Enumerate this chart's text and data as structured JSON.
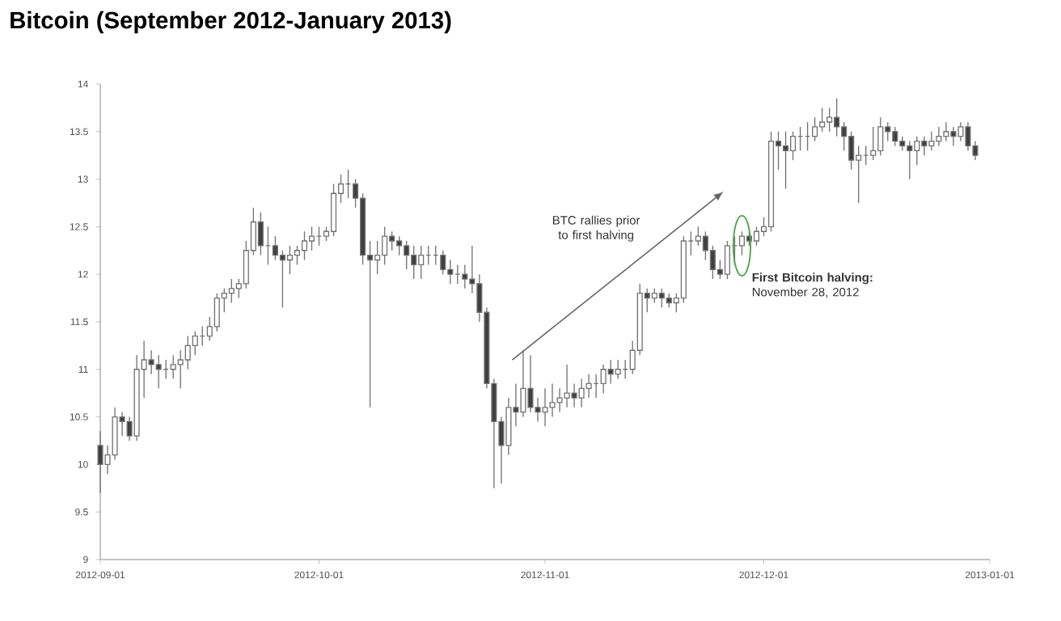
{
  "chart_data": {
    "type": "candlestick",
    "title": "Bitcoin (September 2012-January 2013)",
    "annotations": [
      "BTC rallies prior to first halving",
      {
        "text": "**First Bitcoin halving:** November 28, 2012",
        "x": "2012-11-28",
        "y": 12.3
      }
    ],
    "x": [
      "2012-09-01",
      "2012-09-02",
      "2012-09-03",
      "2012-09-04",
      "2012-09-05",
      "2012-09-06",
      "2012-09-07",
      "2012-09-08",
      "2012-09-09",
      "2012-09-10",
      "2012-09-11",
      "2012-09-12",
      "2012-09-13",
      "2012-09-14",
      "2012-09-15",
      "2012-09-16",
      "2012-09-17",
      "2012-09-18",
      "2012-09-19",
      "2012-09-20",
      "2012-09-21",
      "2012-09-22",
      "2012-09-23",
      "2012-09-24",
      "2012-09-25",
      "2012-09-26",
      "2012-09-27",
      "2012-09-28",
      "2012-09-29",
      "2012-09-30",
      "2012-10-01",
      "2012-10-02",
      "2012-10-03",
      "2012-10-04",
      "2012-10-05",
      "2012-10-06",
      "2012-10-07",
      "2012-10-08",
      "2012-10-09",
      "2012-10-10",
      "2012-10-11",
      "2012-10-12",
      "2012-10-13",
      "2012-10-14",
      "2012-10-15",
      "2012-10-16",
      "2012-10-17",
      "2012-10-18",
      "2012-10-19",
      "2012-10-20",
      "2012-10-21",
      "2012-10-22",
      "2012-10-23",
      "2012-10-24",
      "2012-10-25",
      "2012-10-26",
      "2012-10-27",
      "2012-10-28",
      "2012-10-29",
      "2012-10-30",
      "2012-10-31",
      "2012-11-01",
      "2012-11-02",
      "2012-11-03",
      "2012-11-04",
      "2012-11-05",
      "2012-11-06",
      "2012-11-07",
      "2012-11-08",
      "2012-11-09",
      "2012-11-10",
      "2012-11-11",
      "2012-11-12",
      "2012-11-13",
      "2012-11-14",
      "2012-11-15",
      "2012-11-16",
      "2012-11-17",
      "2012-11-18",
      "2012-11-19",
      "2012-11-20",
      "2012-11-21",
      "2012-11-22",
      "2012-11-23",
      "2012-11-24",
      "2012-11-25",
      "2012-11-26",
      "2012-11-27",
      "2012-11-28",
      "2012-11-29",
      "2012-11-30",
      "2012-12-01",
      "2012-12-02",
      "2012-12-03",
      "2012-12-04",
      "2012-12-05",
      "2012-12-06",
      "2012-12-07",
      "2012-12-08",
      "2012-12-09",
      "2012-12-10",
      "2012-12-11",
      "2012-12-12",
      "2012-12-13",
      "2012-12-14",
      "2012-12-15",
      "2012-12-16",
      "2012-12-17",
      "2012-12-18",
      "2012-12-19",
      "2012-12-20",
      "2012-12-21",
      "2012-12-22",
      "2012-12-23",
      "2012-12-24",
      "2012-12-25",
      "2012-12-26",
      "2012-12-27",
      "2012-12-28",
      "2012-12-29",
      "2012-12-30"
    ],
    "ohlc": [
      [
        10.2,
        10.35,
        9.7,
        10.0
      ],
      [
        10.0,
        10.2,
        9.9,
        10.1
      ],
      [
        10.1,
        10.6,
        10.05,
        10.5
      ],
      [
        10.5,
        10.55,
        10.3,
        10.45
      ],
      [
        10.45,
        10.5,
        10.25,
        10.3
      ],
      [
        10.3,
        11.15,
        10.25,
        11.0
      ],
      [
        11.0,
        11.3,
        10.7,
        11.1
      ],
      [
        11.1,
        11.2,
        10.95,
        11.05
      ],
      [
        11.05,
        11.15,
        10.8,
        11.0
      ],
      [
        11.0,
        11.1,
        10.9,
        11.0
      ],
      [
        11.0,
        11.15,
        10.9,
        11.05
      ],
      [
        11.05,
        11.2,
        10.8,
        11.1
      ],
      [
        11.1,
        11.35,
        11.0,
        11.25
      ],
      [
        11.25,
        11.4,
        11.15,
        11.35
      ],
      [
        11.35,
        11.45,
        11.25,
        11.35
      ],
      [
        11.35,
        11.55,
        11.3,
        11.45
      ],
      [
        11.45,
        11.8,
        11.4,
        11.75
      ],
      [
        11.75,
        11.85,
        11.6,
        11.8
      ],
      [
        11.8,
        11.95,
        11.7,
        11.85
      ],
      [
        11.85,
        11.95,
        11.75,
        11.9
      ],
      [
        11.9,
        12.35,
        11.85,
        12.25
      ],
      [
        12.25,
        12.7,
        12.2,
        12.55
      ],
      [
        12.55,
        12.65,
        12.2,
        12.3
      ],
      [
        12.3,
        12.5,
        12.1,
        12.3
      ],
      [
        12.3,
        12.4,
        12.15,
        12.2
      ],
      [
        12.2,
        12.25,
        11.65,
        12.15
      ],
      [
        12.15,
        12.3,
        12.0,
        12.2
      ],
      [
        12.2,
        12.3,
        12.1,
        12.25
      ],
      [
        12.25,
        12.45,
        12.15,
        12.35
      ],
      [
        12.35,
        12.5,
        12.25,
        12.4
      ],
      [
        12.4,
        12.5,
        12.3,
        12.4
      ],
      [
        12.4,
        12.5,
        12.35,
        12.45
      ],
      [
        12.45,
        12.95,
        12.4,
        12.85
      ],
      [
        12.85,
        13.05,
        12.75,
        12.95
      ],
      [
        12.95,
        13.1,
        12.8,
        12.95
      ],
      [
        12.95,
        13.0,
        12.7,
        12.8
      ],
      [
        12.8,
        12.85,
        12.1,
        12.2
      ],
      [
        12.2,
        12.35,
        10.6,
        12.15
      ],
      [
        12.15,
        12.35,
        12.0,
        12.2
      ],
      [
        12.2,
        12.5,
        12.1,
        12.4
      ],
      [
        12.4,
        12.45,
        12.25,
        12.35
      ],
      [
        12.35,
        12.4,
        12.2,
        12.3
      ],
      [
        12.3,
        12.35,
        12.05,
        12.2
      ],
      [
        12.2,
        12.3,
        11.95,
        12.1
      ],
      [
        12.1,
        12.3,
        11.95,
        12.2
      ],
      [
        12.2,
        12.3,
        12.1,
        12.2
      ],
      [
        12.2,
        12.3,
        12.1,
        12.2
      ],
      [
        12.2,
        12.25,
        12.0,
        12.05
      ],
      [
        12.05,
        12.15,
        11.9,
        12.0
      ],
      [
        12.0,
        12.1,
        11.9,
        12.0
      ],
      [
        12.0,
        12.1,
        11.85,
        11.95
      ],
      [
        11.95,
        12.3,
        11.8,
        11.9
      ],
      [
        11.9,
        12.0,
        11.5,
        11.6
      ],
      [
        11.6,
        11.65,
        10.8,
        10.85
      ],
      [
        10.85,
        10.9,
        9.75,
        10.45
      ],
      [
        10.45,
        10.5,
        9.8,
        10.2
      ],
      [
        10.2,
        10.7,
        10.1,
        10.6
      ],
      [
        10.6,
        10.85,
        10.4,
        10.55
      ],
      [
        10.55,
        11.2,
        10.5,
        10.8
      ],
      [
        10.8,
        11.15,
        10.55,
        10.6
      ],
      [
        10.6,
        10.7,
        10.45,
        10.55
      ],
      [
        10.55,
        10.8,
        10.4,
        10.6
      ],
      [
        10.6,
        10.85,
        10.5,
        10.65
      ],
      [
        10.65,
        10.8,
        10.55,
        10.7
      ],
      [
        10.7,
        11.05,
        10.6,
        10.75
      ],
      [
        10.75,
        10.85,
        10.6,
        10.7
      ],
      [
        10.7,
        10.9,
        10.6,
        10.8
      ],
      [
        10.8,
        10.95,
        10.7,
        10.85
      ],
      [
        10.85,
        10.95,
        10.7,
        10.85
      ],
      [
        10.85,
        11.05,
        10.75,
        11.0
      ],
      [
        11.0,
        11.1,
        10.85,
        10.95
      ],
      [
        10.95,
        11.1,
        10.9,
        11.0
      ],
      [
        11.0,
        11.1,
        10.9,
        11.0
      ],
      [
        11.0,
        11.3,
        10.95,
        11.2
      ],
      [
        11.2,
        11.9,
        11.15,
        11.8
      ],
      [
        11.8,
        11.85,
        11.6,
        11.75
      ],
      [
        11.75,
        11.85,
        11.7,
        11.8
      ],
      [
        11.8,
        11.85,
        11.65,
        11.75
      ],
      [
        11.75,
        11.8,
        11.65,
        11.7
      ],
      [
        11.7,
        11.8,
        11.6,
        11.75
      ],
      [
        11.75,
        12.4,
        11.7,
        12.35
      ],
      [
        12.35,
        12.45,
        12.2,
        12.35
      ],
      [
        12.35,
        12.5,
        12.3,
        12.4
      ],
      [
        12.4,
        12.45,
        12.15,
        12.25
      ],
      [
        12.25,
        12.3,
        11.95,
        12.05
      ],
      [
        12.05,
        12.15,
        11.95,
        12.0
      ],
      [
        12.0,
        12.35,
        11.95,
        12.3
      ],
      [
        12.3,
        12.4,
        12.1,
        12.3
      ],
      [
        12.3,
        12.45,
        12.2,
        12.4
      ],
      [
        12.4,
        12.45,
        12.3,
        12.35
      ],
      [
        12.35,
        12.5,
        12.3,
        12.45
      ],
      [
        12.45,
        12.6,
        12.4,
        12.5
      ],
      [
        12.5,
        13.5,
        12.45,
        13.4
      ],
      [
        13.4,
        13.5,
        13.1,
        13.35
      ],
      [
        13.35,
        13.5,
        12.9,
        13.3
      ],
      [
        13.3,
        13.5,
        13.2,
        13.45
      ],
      [
        13.45,
        13.55,
        13.3,
        13.45
      ],
      [
        13.45,
        13.6,
        13.3,
        13.45
      ],
      [
        13.45,
        13.65,
        13.4,
        13.55
      ],
      [
        13.55,
        13.75,
        13.5,
        13.6
      ],
      [
        13.6,
        13.75,
        13.5,
        13.65
      ],
      [
        13.65,
        13.85,
        13.45,
        13.55
      ],
      [
        13.55,
        13.6,
        13.3,
        13.45
      ],
      [
        13.45,
        13.5,
        13.1,
        13.2
      ],
      [
        13.2,
        13.35,
        12.75,
        13.25
      ],
      [
        13.25,
        13.35,
        13.15,
        13.25
      ],
      [
        13.25,
        13.55,
        13.2,
        13.3
      ],
      [
        13.3,
        13.65,
        13.25,
        13.55
      ],
      [
        13.55,
        13.6,
        13.4,
        13.5
      ],
      [
        13.5,
        13.55,
        13.35,
        13.4
      ],
      [
        13.4,
        13.45,
        13.3,
        13.35
      ],
      [
        13.35,
        13.4,
        13.0,
        13.3
      ],
      [
        13.3,
        13.45,
        13.15,
        13.4
      ],
      [
        13.4,
        13.45,
        13.25,
        13.35
      ],
      [
        13.35,
        13.5,
        13.3,
        13.4
      ],
      [
        13.4,
        13.55,
        13.35,
        13.45
      ],
      [
        13.45,
        13.6,
        13.4,
        13.5
      ],
      [
        13.5,
        13.55,
        13.35,
        13.45
      ],
      [
        13.45,
        13.6,
        13.4,
        13.55
      ],
      [
        13.55,
        13.6,
        13.3,
        13.35
      ],
      [
        13.35,
        13.4,
        13.2,
        13.25
      ]
    ],
    "xlim": [
      "2012-09-01",
      "2013-01-01"
    ],
    "xticks": [
      "2012-09-01",
      "2012-10-01",
      "2012-11-01",
      "2012-12-01",
      "2013-01-01"
    ],
    "ylim": [
      9,
      14
    ],
    "yticks": [
      9,
      9.5,
      10,
      10.5,
      11,
      11.5,
      12,
      12.5,
      13,
      13.5,
      14
    ],
    "grid": false
  }
}
